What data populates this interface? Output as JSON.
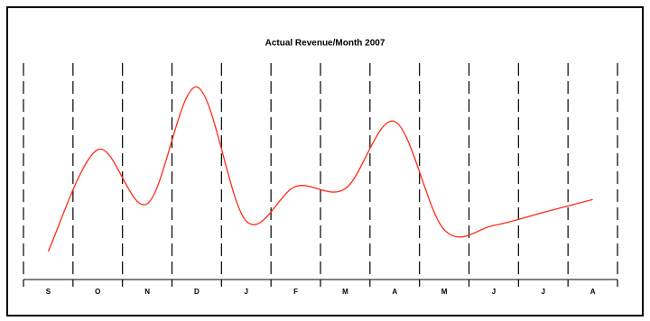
{
  "chart_data": {
    "type": "line",
    "title": "Actual Revenue/Month 2007",
    "categories": [
      "S",
      "O",
      "N",
      "D",
      "J",
      "F",
      "M",
      "A",
      "M",
      "J",
      "J",
      "A"
    ],
    "series": [
      {
        "name": "Actual Revenue",
        "color": "#ff2a1a",
        "values": [
          13,
          60,
          35,
          89,
          27,
          43,
          42,
          73,
          23,
          25,
          31,
          37
        ]
      }
    ],
    "ylim": [
      0,
      100
    ],
    "grid": true
  }
}
